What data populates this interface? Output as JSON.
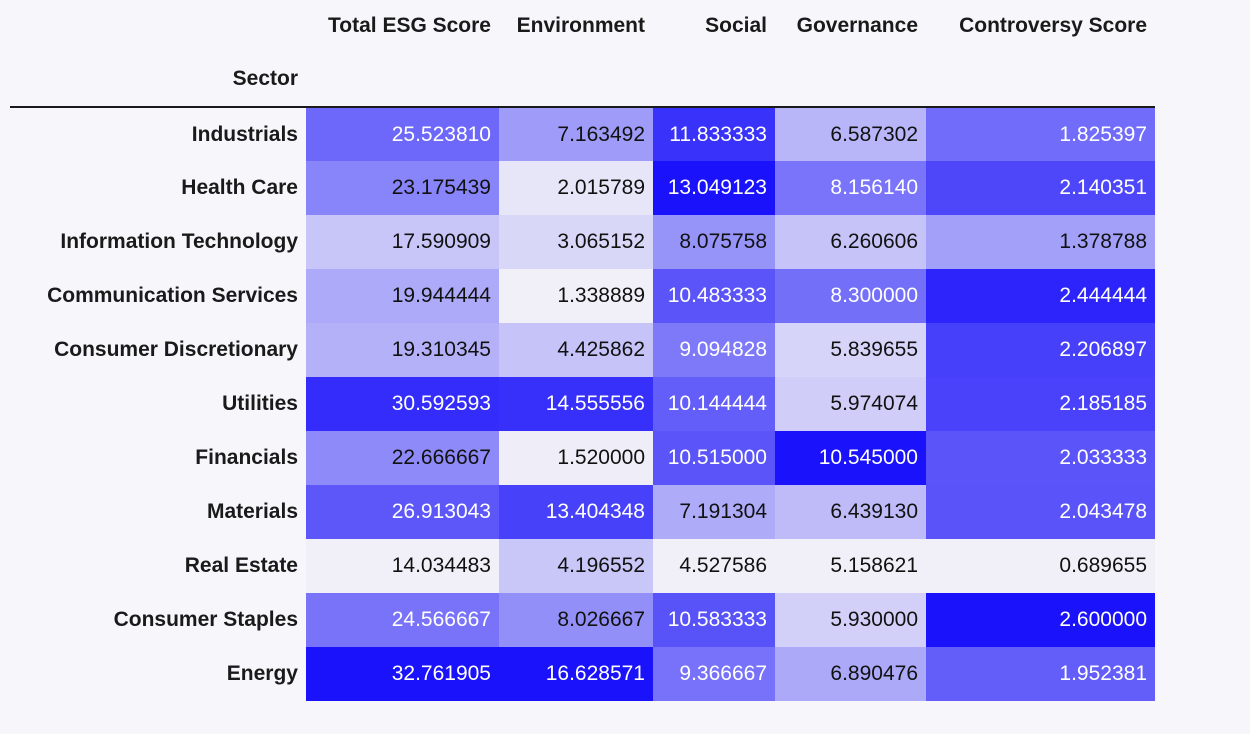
{
  "chart_data": {
    "type": "heatmap",
    "index_name": "Sector",
    "columns": [
      "Total ESG Score",
      "Environment",
      "Social",
      "Governance",
      "Controversy Score"
    ],
    "rows": [
      "Industrials",
      "Health Care",
      "Information Technology",
      "Communication Services",
      "Consumer Discretionary",
      "Utilities",
      "Financials",
      "Materials",
      "Real Estate",
      "Consumer Staples",
      "Energy"
    ],
    "values": [
      [
        "25.523810",
        "7.163492",
        "11.833333",
        "6.587302",
        "1.825397"
      ],
      [
        "23.175439",
        "2.015789",
        "13.049123",
        "8.156140",
        "2.140351"
      ],
      [
        "17.590909",
        "3.065152",
        "8.075758",
        "6.260606",
        "1.378788"
      ],
      [
        "19.944444",
        "1.338889",
        "10.483333",
        "8.300000",
        "2.444444"
      ],
      [
        "19.310345",
        "4.425862",
        "9.094828",
        "5.839655",
        "2.206897"
      ],
      [
        "30.592593",
        "14.555556",
        "10.144444",
        "5.974074",
        "2.185185"
      ],
      [
        "22.666667",
        "1.520000",
        "10.515000",
        "10.545000",
        "2.033333"
      ],
      [
        "26.913043",
        "13.404348",
        "7.191304",
        "6.439130",
        "2.043478"
      ],
      [
        "14.034483",
        "4.196552",
        "4.527586",
        "5.158621",
        "0.689655"
      ],
      [
        "24.566667",
        "8.026667",
        "10.583333",
        "5.930000",
        "2.600000"
      ],
      [
        "32.761905",
        "16.628571",
        "9.366667",
        "6.890476",
        "1.952381"
      ]
    ],
    "colormap": {
      "low": "#f1f0f8",
      "high": "#1a12fa"
    },
    "scaling": "per-column"
  }
}
